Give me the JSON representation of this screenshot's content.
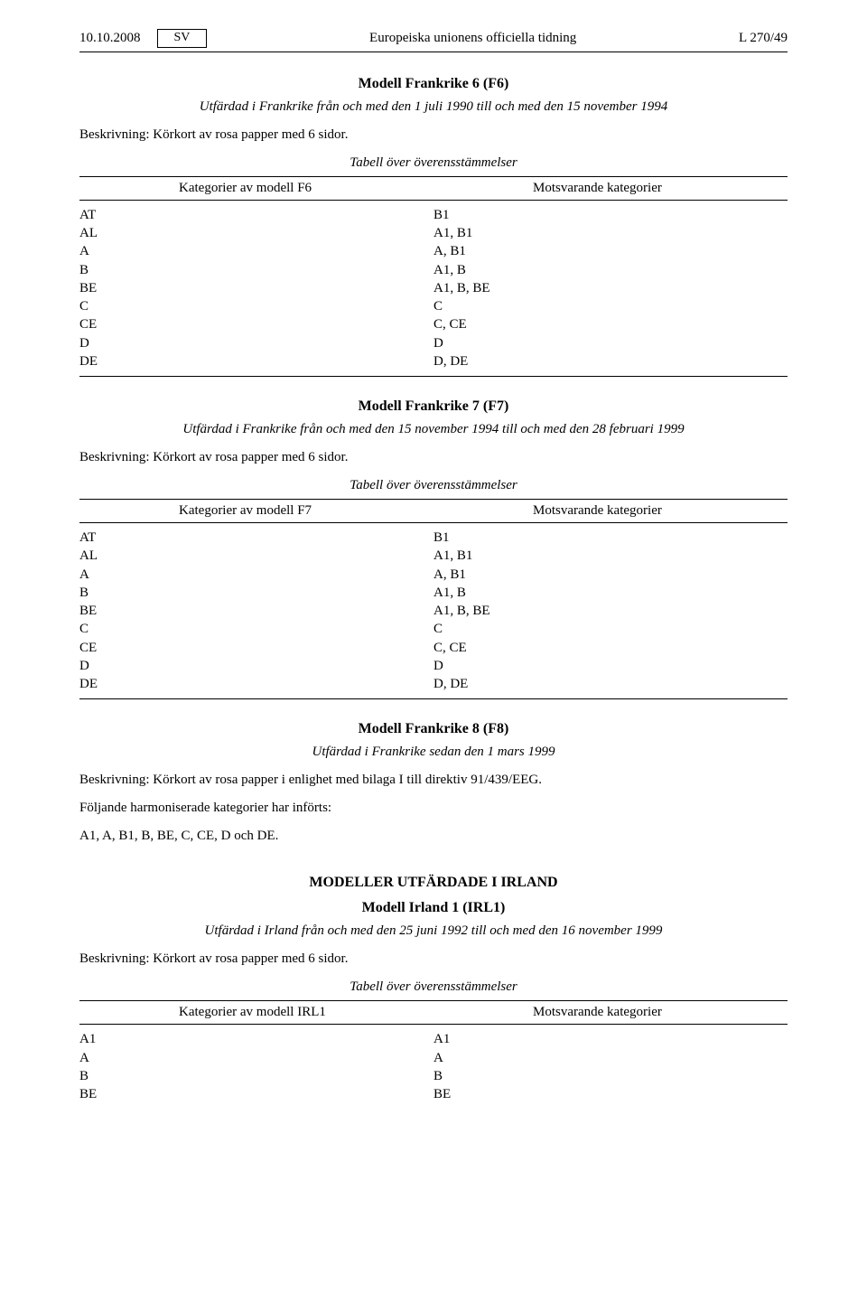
{
  "header": {
    "date": "10.10.2008",
    "lang": "SV",
    "journal": "Europeiska unionens officiella tidning",
    "pageref": "L 270/49"
  },
  "models": [
    {
      "title": "Modell Frankrike 6 (F6)",
      "subtitle": "Utfärdad i Frankrike från och med den 1 juli 1990 till och med den 15 november 1994",
      "description": "Beskrivning: Körkort av rosa papper med 6 sidor.",
      "toc_title": "Tabell över överensstämmelser",
      "col1": "Kategorier av modell F6",
      "col2": "Motsvarande kategorier",
      "rows": [
        {
          "l": "AT",
          "r": "B1"
        },
        {
          "l": "AL",
          "r": "A1, B1"
        },
        {
          "l": "A",
          "r": "A, B1"
        },
        {
          "l": "B",
          "r": "A1, B"
        },
        {
          "l": "BE",
          "r": "A1, B, BE"
        },
        {
          "l": "C",
          "r": "C"
        },
        {
          "l": "CE",
          "r": "C, CE"
        },
        {
          "l": "D",
          "r": "D"
        },
        {
          "l": "DE",
          "r": "D, DE"
        }
      ],
      "closed": true,
      "desc_before_subtitle": false
    },
    {
      "title": "Modell Frankrike 7 (F7)",
      "subtitle": "Utfärdad i Frankrike från och med den 15 november 1994 till och med den 28 februari 1999",
      "description": "Beskrivning: Körkort av rosa papper med 6 sidor.",
      "toc_title": "Tabell över överensstämmelser",
      "col1": "Kategorier av modell F7",
      "col2": "Motsvarande kategorier",
      "rows": [
        {
          "l": "AT",
          "r": "B1"
        },
        {
          "l": "AL",
          "r": "A1, B1"
        },
        {
          "l": "A",
          "r": "A, B1"
        },
        {
          "l": "B",
          "r": "A1, B"
        },
        {
          "l": "BE",
          "r": "A1, B, BE"
        },
        {
          "l": "C",
          "r": "C"
        },
        {
          "l": "CE",
          "r": "C, CE"
        },
        {
          "l": "D",
          "r": "D"
        },
        {
          "l": "DE",
          "r": "D, DE"
        }
      ],
      "closed": true,
      "desc_before_subtitle": false
    }
  ],
  "model8": {
    "title": "Modell Frankrike 8 (F8)",
    "subtitle": "Utfärdad i Frankrike sedan den 1 mars 1999",
    "desc": "Beskrivning: Körkort av rosa papper i enlighet med bilaga I till direktiv 91/439/EEG.",
    "line2": "Följande harmoniserade kategorier har införts:",
    "line3": "A1, A, B1, B, BE, C, CE, D och DE."
  },
  "ireland": {
    "heading": "MODELLER UTFÄRDADE I IRLAND",
    "title": "Modell Irland 1 (IRL1)",
    "subtitle": "Utfärdad i Irland från och med den 25 juni 1992 till och med den 16 november 1999",
    "description": "Beskrivning: Körkort av rosa papper med 6 sidor.",
    "toc_title": "Tabell över överensstämmelser",
    "col1": "Kategorier av modell IRL1",
    "col2": "Motsvarande kategorier",
    "rows": [
      {
        "l": "A1",
        "r": "A1"
      },
      {
        "l": "A",
        "r": "A"
      },
      {
        "l": "B",
        "r": "B"
      },
      {
        "l": "BE",
        "r": "BE"
      }
    ],
    "closed": false
  }
}
